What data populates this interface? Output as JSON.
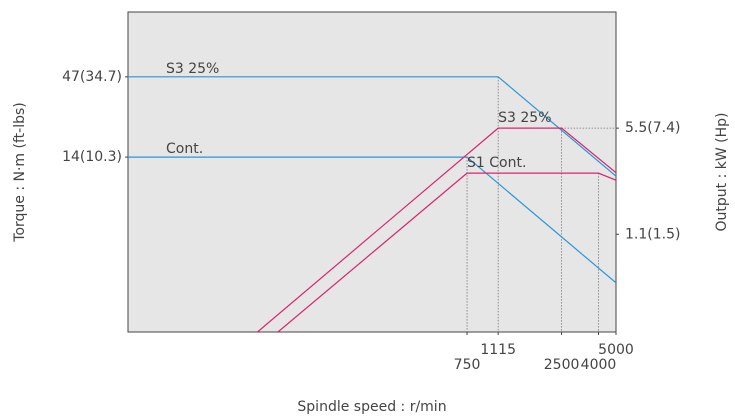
{
  "chart_data": {
    "type": "line",
    "xlabel": "Spindle speed : r/min",
    "ylabel": "Torque : N·m (ft-lbs)",
    "y2label": "Output : kW (Hp)",
    "xscale": "log",
    "yscale": "log",
    "y2scale": "log",
    "xlim": [
      10,
      5000
    ],
    "xticks": [
      750,
      1115,
      2500,
      4000,
      5000
    ],
    "ylim": [
      1,
      125
    ],
    "yticks": [
      {
        "value": 47,
        "label": "47(34.7)"
      },
      {
        "value": 14,
        "label": "14(10.3)"
      }
    ],
    "y2lim": [
      0.25,
      32
    ],
    "y2ticks": [
      {
        "value": 5.5,
        "label": "5.5(7.4)"
      },
      {
        "value": 1.1,
        "label": "1.1(1.5)"
      }
    ],
    "grid": false,
    "series": [
      {
        "name": "S3 25%",
        "color": "#2a96d8",
        "x": [
          10,
          1115,
          5000
        ],
        "values": [
          47,
          47,
          10.5
        ]
      },
      {
        "name": "Cont.",
        "color": "#2a96d8",
        "x": [
          10,
          750,
          5000
        ],
        "values": [
          14,
          14,
          2.1
        ]
      },
      {
        "name": "S3 25%",
        "color": "#d8256f",
        "axis": "y2",
        "x": [
          52,
          1115,
          2500,
          5000
        ],
        "values": [
          0.25,
          5.5,
          5.5,
          2.8
        ]
      },
      {
        "name": "S1 Cont.",
        "color": "#d8256f",
        "axis": "y2",
        "x": [
          67.5,
          750,
          4000,
          5000
        ],
        "values": [
          0.25,
          2.78,
          2.78,
          2.5
        ]
      }
    ]
  }
}
